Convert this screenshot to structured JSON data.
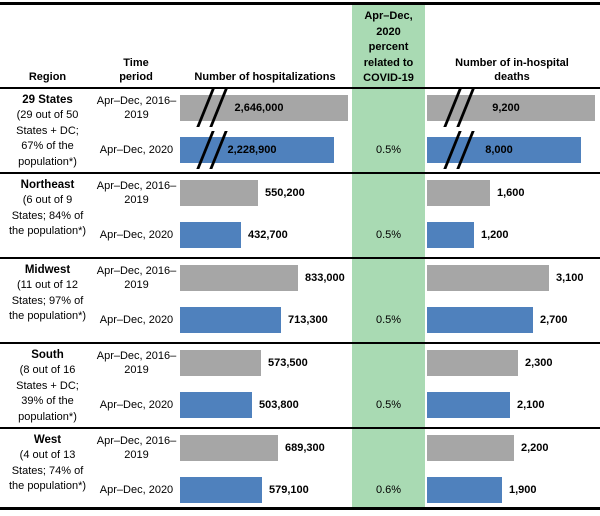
{
  "colors": {
    "baseline_bar": "#a6a6a6",
    "pandemic_bar": "#4f81bd",
    "percent_column_bg": "#a9dab3",
    "rule": "#000000"
  },
  "header": {
    "columns": {
      "region": "Region",
      "time_period": "Time period",
      "hospitalizations": "Number of hospitalizations",
      "covid_percent": "Apr–Dec, 2020 percent related to COVID-19",
      "deaths": "Number of in-hospital deaths"
    }
  },
  "chart_data": {
    "type": "bar",
    "orientation": "horizontal",
    "panels": [
      "Number of hospitalizations",
      "Number of in-hospital deaths"
    ],
    "series_labels": {
      "baseline": "Apr–Dec, 2016–2019",
      "pandemic": "Apr–Dec, 2020"
    },
    "legend_position": "none",
    "grid": false,
    "axis_break_note": "First category bars are truncated with // break marks (not to scale)",
    "regions": [
      {
        "name": "29 States",
        "description": "(29 out of 50 States + DC; 67% of the population*)",
        "axis_break": true,
        "hospitalizations": {
          "baseline": 2646000,
          "pandemic": 2228900,
          "baseline_label": "2,646,000",
          "pandemic_label": "2,228,900"
        },
        "deaths": {
          "baseline": 9200,
          "pandemic": 8000,
          "baseline_label": "9,200",
          "pandemic_label": "8,000"
        },
        "percent_covid": "0.5%"
      },
      {
        "name": "Northeast",
        "description": "(6 out of 9 States; 84% of the population*)",
        "axis_break": false,
        "hospitalizations": {
          "baseline": 550200,
          "pandemic": 432700,
          "baseline_label": "550,200",
          "pandemic_label": "432,700"
        },
        "deaths": {
          "baseline": 1600,
          "pandemic": 1200,
          "baseline_label": "1,600",
          "pandemic_label": "1,200"
        },
        "percent_covid": "0.5%"
      },
      {
        "name": "Midwest",
        "description": "(11 out of 12 States; 97% of the population*)",
        "axis_break": false,
        "hospitalizations": {
          "baseline": 833000,
          "pandemic": 713300,
          "baseline_label": "833,000",
          "pandemic_label": "713,300"
        },
        "deaths": {
          "baseline": 3100,
          "pandemic": 2700,
          "baseline_label": "3,100",
          "pandemic_label": "2,700"
        },
        "percent_covid": "0.5%"
      },
      {
        "name": "South",
        "description": "(8 out of 16 States + DC; 39% of the population*)",
        "axis_break": false,
        "hospitalizations": {
          "baseline": 573500,
          "pandemic": 503800,
          "baseline_label": "573,500",
          "pandemic_label": "503,800"
        },
        "deaths": {
          "baseline": 2300,
          "pandemic": 2100,
          "baseline_label": "2,300",
          "pandemic_label": "2,100"
        },
        "percent_covid": "0.5%"
      },
      {
        "name": "West",
        "description": "(4 out of 13 States; 74% of the population*)",
        "axis_break": false,
        "hospitalizations": {
          "baseline": 689300,
          "pandemic": 579100,
          "baseline_label": "689,300",
          "pandemic_label": "579,100"
        },
        "deaths": {
          "baseline": 2200,
          "pandemic": 1900,
          "baseline_label": "2,200",
          "pandemic_label": "1,900"
        },
        "percent_covid": "0.6%"
      }
    ]
  }
}
